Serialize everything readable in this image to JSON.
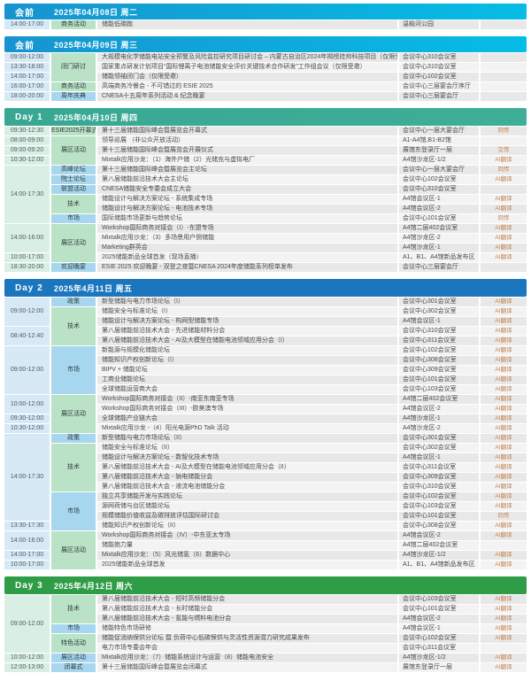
{
  "colors": {
    "time_blue": "#d8e9f6",
    "time_green": "#daefe3",
    "cat_blue": "#a6d7ef",
    "cat_green": "#b9e2c6",
    "row_dark": "#e8e8e8",
    "row_light": "#f3f3f3",
    "tag_text": "#c2824e",
    "header_text": "#ffffff"
  },
  "sections": [
    {
      "label": "会前",
      "date": "2025年04月08日 周二",
      "kind": "pre",
      "header_colors": [
        "#1794cf",
        "#06bde6"
      ],
      "time_color": "blue",
      "rows": [
        {
          "time": "14:00-17:00",
          "timeSpan": 1,
          "cat": "商务活动",
          "catSpan": 1,
          "catColor": "green",
          "title": "储能低碳跑",
          "loc": "温榆河公园",
          "tag": ""
        }
      ]
    },
    {
      "label": "会前",
      "date": "2025年04月09日 周三",
      "kind": "pre",
      "header_colors": [
        "#1794cf",
        "#06bde6"
      ],
      "time_color": "blue",
      "rows": [
        {
          "time": "09:00-12:00",
          "timeSpan": 1,
          "cat": "闭门研讨",
          "catSpan": 3,
          "catColor": "green",
          "title": "大规模电化学储能电站安全预警及风险监控研究项目研讨会 – 内蒙古自治区2024年揭榜挂帅科技项目（仅限受邀）",
          "loc": "会议中心310会议室",
          "tag": ""
        },
        {
          "time": "13:30-18:00",
          "timeSpan": 1,
          "title": "国家重点研发计划项目“国际锂离子电池储能安全评价关键技术合作研发”工作组会议（仅限受邀）",
          "loc": "会议中心310会议室",
          "tag": ""
        },
        {
          "time": "14:00-17:00",
          "timeSpan": 1,
          "title": "储能领袖闭门会（仅限受邀）",
          "loc": "会议中心102会议室",
          "tag": ""
        },
        {
          "time": "16:00-17:00",
          "timeSpan": 1,
          "cat": "商务活动",
          "catSpan": 1,
          "catColor": "green",
          "title": "高端商务冷餐会 - 不可错过的 ESIE 2025",
          "loc": "会议中心三层宴会厅序厅",
          "tag": ""
        },
        {
          "time": "18:00-20:00",
          "timeSpan": 1,
          "cat": "周年庆典",
          "catSpan": 1,
          "catColor": "blue",
          "title": "CNESA十五周年系列活动 & 纪念晚宴",
          "loc": "会议中心三层宴会厅",
          "tag": ""
        }
      ]
    },
    {
      "label": "Day 1",
      "date": "2025年04月10日 周四",
      "kind": "day",
      "header_colors": [
        "#38a893",
        "#3fae97"
      ],
      "time_color": "green",
      "rows": [
        {
          "time": "09:30-12:30",
          "timeSpan": 1,
          "cat": "ESIE2025开幕式",
          "catSpan": 1,
          "catColor": "green",
          "title": "第十三届储能国际峰会暨展览会开幕式",
          "loc": "会议中心一层大宴会厅",
          "tag": "同传"
        },
        {
          "time": "08:00-09:00",
          "timeSpan": 1,
          "cat": "展区活动",
          "catSpan": 3,
          "catColor": "green",
          "title": "领导巡展 （非公众开放活动）",
          "loc": "A1-A4馆,B1-B2馆",
          "tag": ""
        },
        {
          "time": "09:00-09:20",
          "timeSpan": 1,
          "title": "第十三届储能国际峰会暨展览会开展仪式",
          "loc": "展馆东登录厅一层",
          "tag": "交传"
        },
        {
          "time": "10:30-12:00",
          "timeSpan": 1,
          "title": "Mixtalk应用沙龙：（1）海外户储（2）光储充与虚拟电厂",
          "loc": "A4馆沙龙区-1/2",
          "tag": "AI翻译"
        },
        {
          "time": "14:00-17:30",
          "timeSpan": 6,
          "cat": "高峰论坛",
          "catSpan": 1,
          "catColor": "blue",
          "title": "第十三届储能国际峰会暨展览会主论坛",
          "loc": "会议中心一层大宴会厅",
          "tag": "同传"
        },
        {
          "cat": "院士论坛",
          "catSpan": 1,
          "catColor": "blue",
          "title": "第八届储能前沿技术大会主论坛",
          "loc": "会议中心102会议室",
          "tag": "AI翻译"
        },
        {
          "cat": "联盟活动",
          "catSpan": 1,
          "catColor": "blue",
          "title": "CNESA储能安全专委会成立大会",
          "loc": "会议中心310会议室",
          "tag": ""
        },
        {
          "cat": "技术",
          "catSpan": 2,
          "catColor": "green",
          "title": "储能设计与解决方案论坛 - 系统集成专场",
          "loc": "A4馆会议区-1",
          "tag": "AI翻译"
        },
        {
          "title": "储能设计与解决方案论坛 - 电池技术专场",
          "loc": "A4馆会议区-2",
          "tag": "AI翻译"
        },
        {
          "cat": "市场",
          "catSpan": 1,
          "catColor": "blue",
          "title": "国际储能市场更新与趋势论坛",
          "loc": "会议中心101会议室",
          "tag": "同传"
        },
        {
          "time": "14:00-16:00",
          "timeSpan": 3,
          "cat": "展区活动",
          "catSpan": 4,
          "catColor": "green",
          "title": "Workshop国际商务对接会（I）-东盟专场",
          "loc": "A4馆二层402会议室",
          "tag": "AI翻译"
        },
        {
          "title": "Mixtalk应用沙龙：（3）多场景用户侧储能",
          "loc": "A4馆沙龙区-2",
          "tag": "AI翻译"
        },
        {
          "title": "Marketing群英会",
          "loc": "A4馆沙龙区-1",
          "tag": "AI翻译"
        },
        {
          "time": "10:00-17:00",
          "timeSpan": 1,
          "title": "2025储能新品全球首发（现场直播）",
          "loc": "A1、B1、A4馆新品发布区",
          "tag": "AI翻译"
        },
        {
          "time": "18:30-20:00",
          "timeSpan": 1,
          "cat": "欢迎晚宴",
          "catSpan": 1,
          "catColor": "blue",
          "title": "ESIE 2025 欢迎晚宴 - 双登之夜暨CNESA 2024年度储能系列榜单发布",
          "loc": "会议中心三层宴会厅",
          "tag": ""
        }
      ]
    },
    {
      "label": "Day 2",
      "date": "2025年4月11日 周五",
      "kind": "day",
      "header_colors": [
        "#1c76bd",
        "#1c76bd"
      ],
      "time_color": "blue",
      "rows": [
        {
          "time": "09:00-12:00",
          "timeSpan": 3,
          "cat": "政策",
          "catSpan": 1,
          "catColor": "blue",
          "title": "新型储能与电力市场论坛（I）",
          "loc": "会议中心301会议室",
          "tag": "AI翻译"
        },
        {
          "cat": "技术",
          "catSpan": 4,
          "catColor": "green",
          "title": "储能安全与标准论坛（I）",
          "loc": "会议中心302会议室",
          "tag": "AI翻译"
        },
        {
          "title": "储能设计与解决方案论坛 - 构网型储能专场",
          "loc": "A4馆会议区-1",
          "tag": "AI翻译"
        },
        {
          "time": "08:40-12:40",
          "timeSpan": 2,
          "title": "第八届储能前沿技术大会 - 先进储能材料分会",
          "loc": "会议中心310会议室",
          "tag": "AI翻译"
        },
        {
          "title": "第八届储能前沿技术大会 - AI及大模型在储能电池领域应用分会（I）",
          "loc": "会议中心311会议室",
          "tag": "AI翻译"
        },
        {
          "time": "09:00-12:00",
          "timeSpan": 5,
          "cat": "市场",
          "catSpan": 5,
          "catColor": "blue",
          "title": "新能源与规模化储能论坛",
          "loc": "会议中心102会议室",
          "tag": "AI翻译"
        },
        {
          "title": "储能知识产权创新论坛（I）",
          "loc": "会议中心308会议室",
          "tag": "AI翻译"
        },
        {
          "title": "BIPV + 储能论坛",
          "loc": "会议中心309会议室",
          "tag": "AI翻译"
        },
        {
          "title": "工商业储能论坛",
          "loc": "会议中心101会议室",
          "tag": "AI翻译"
        },
        {
          "title": "全球储能运营商大会",
          "loc": "会议中心103会议室",
          "tag": "AI翻译"
        },
        {
          "time": "10:00-12:00",
          "timeSpan": 2,
          "cat": "展区活动",
          "catSpan": 4,
          "catColor": "green",
          "title": "Workshop国际商务对接会（II）-南亚东南亚专场",
          "loc": "A4馆二层402会议室",
          "tag": "AI翻译"
        },
        {
          "title": "Workshop国际商务对接会（III）-欧美澳专场",
          "loc": "A4馆会议区-2",
          "tag": "AI翻译"
        },
        {
          "time": "09:30-12:00",
          "timeSpan": 1,
          "title": "全球储能产业链大会",
          "loc": "A4馆沙龙区-1",
          "tag": "AI翻译"
        },
        {
          "time": "10:30-12:00",
          "timeSpan": 1,
          "title": "Mixtalk应用沙龙 -（4）阳光电源PhD Talk 活动",
          "loc": "A4馆沙龙区-2",
          "tag": "AI翻译"
        },
        {
          "time": "14:00-17:30",
          "timeSpan": 9,
          "cat": "政策",
          "catSpan": 1,
          "catColor": "blue",
          "title": "新型储能与电力市场论坛（II）",
          "loc": "会议中心301会议室",
          "tag": "AI翻译"
        },
        {
          "cat": "技术",
          "catSpan": 5,
          "catColor": "green",
          "title": "储能安全与标准论坛（II）",
          "loc": "会议中心302会议室",
          "tag": "AI翻译"
        },
        {
          "title": "储能设计与解决方案论坛 - 数智化技术专场",
          "loc": "A4馆会议区-1",
          "tag": "AI翻译"
        },
        {
          "title": "第八届储能前沿技术大会 - AI及大模型在储能电池领域应用分会（II）",
          "loc": "会议中心311会议室",
          "tag": "AI翻译"
        },
        {
          "title": "第八届储能前沿技术大会 - 钠电储能分会",
          "loc": "会议中心309会议室",
          "tag": "AI翻译"
        },
        {
          "title": "第八届储能前沿技术大会 - 液流电池储能分会",
          "loc": "会议中心310会议室",
          "tag": "AI翻译"
        },
        {
          "cat": "市场",
          "catSpan": 4,
          "catColor": "blue",
          "title": "独立共享储能开发与实践论坛",
          "loc": "会议中心102会议室",
          "tag": "AI翻译"
        },
        {
          "title": "源网荷储与台区储能论坛",
          "loc": "会议中心103会议室",
          "tag": "AI翻译"
        },
        {
          "title": "规模储能价值收益及碳排放评估国际研讨会",
          "loc": "会议中心101会议室",
          "tag": "同传"
        },
        {
          "time": "13:30-17:30",
          "timeSpan": 1,
          "title": "储能知识产权创新论坛（II）",
          "loc": "会议中心308会议室",
          "tag": "AI翻译"
        },
        {
          "time": "14:00-16:00",
          "timeSpan": 2,
          "cat": "展区活动",
          "catSpan": 4,
          "catColor": "green",
          "title": "Workshop国际商务对接会（IV）-中东亚太专场",
          "loc": "A4馆会议区-2",
          "tag": "AI翻译"
        },
        {
          "title": "储能她力量",
          "loc": "A4馆二层402会议室",
          "tag": ""
        },
        {
          "time": "14:00-17:00",
          "timeSpan": 1,
          "title": "Mixtalk应用沙龙：（5）风光储氢（6）数据中心",
          "loc": "A4馆沙龙区-1/2",
          "tag": "AI翻译"
        },
        {
          "time": "10:00-17:00",
          "timeSpan": 1,
          "title": "2025储能新品全球首发",
          "loc": "A1、B1、A4馆新品发布区",
          "tag": "AI翻译"
        }
      ]
    },
    {
      "label": "Day 3",
      "date": "2025年4月12日 周六",
      "kind": "day",
      "header_colors": [
        "#2f9c47",
        "#2f9c47"
      ],
      "time_color": "green",
      "rows": [
        {
          "time": "09:00-12:00",
          "timeSpan": 6,
          "cat": "技术",
          "catSpan": 3,
          "catColor": "green",
          "title": "第八届储能前沿技术大会 - 短时高频储能分会",
          "loc": "会议中心103会议室",
          "tag": "AI翻译"
        },
        {
          "title": "第八届储能前沿技术大会 - 长时储能分会",
          "loc": "会议中心101会议室",
          "tag": "AI翻译"
        },
        {
          "title": "第八届储能前沿技术大会 - 氢能与燃料电池分会",
          "loc": "A4馆会议区-2",
          "tag": "AI翻译"
        },
        {
          "cat": "市场",
          "catSpan": 1,
          "catColor": "blue",
          "title": "储能特色市场研修",
          "loc": "A4馆会议区-1",
          "tag": "AI翻译"
        },
        {
          "cat": "特色活动",
          "catSpan": 2,
          "catColor": "green",
          "title": "储能促消纳保供分论坛 暨 负荷中心低碳保供与灵活性资源潜力研究成果发布",
          "loc": "会议中心102会议室",
          "tag": "AI翻译"
        },
        {
          "title": "电力市场专委会年会",
          "loc": "会议中心311会议室",
          "tag": ""
        },
        {
          "time": "10:00-12:00",
          "timeSpan": 1,
          "cat": "展区活动",
          "catSpan": 1,
          "catColor": "blue",
          "title": "Mixtalk应用沙龙：（7）储能系统设计与运营（8）储能电池安全",
          "loc": "A4馆沙龙区-1/2",
          "tag": "AI翻译"
        },
        {
          "time": "12:00-13:00",
          "timeSpan": 1,
          "cat": "闭幕式",
          "catSpan": 1,
          "catColor": "blue",
          "title": "第十三届储能国际峰会暨展览会闭幕式",
          "loc": "展馆东登录厅一层",
          "tag": "AI翻译"
        }
      ]
    }
  ]
}
